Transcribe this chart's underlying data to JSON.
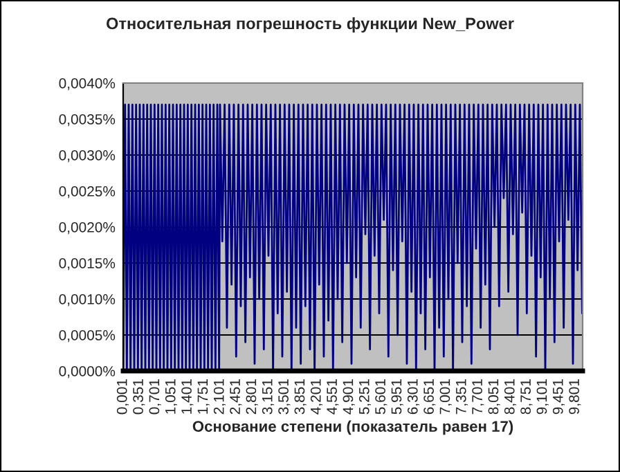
{
  "chart_data": {
    "type": "line",
    "title": "Относительная погрешность функции New_Power",
    "xlabel": "Основание степени (показатель равен 17)",
    "xlim": [
      0.001,
      9.96
    ],
    "ylim": [
      0,
      0.004
    ],
    "grid": "y",
    "legend": false,
    "marker": "none",
    "line_style": "solid",
    "xticks": [
      {
        "value": 0.001,
        "label": "0,001"
      },
      {
        "value": 0.351,
        "label": "0,351"
      },
      {
        "value": 0.701,
        "label": "0,701"
      },
      {
        "value": 1.051,
        "label": "1,051"
      },
      {
        "value": 1.401,
        "label": "1,401"
      },
      {
        "value": 1.751,
        "label": "1,751"
      },
      {
        "value": 2.101,
        "label": "2,101"
      },
      {
        "value": 2.451,
        "label": "2,451"
      },
      {
        "value": 2.801,
        "label": "2,801"
      },
      {
        "value": 3.151,
        "label": "3,151"
      },
      {
        "value": 3.501,
        "label": "3,501"
      },
      {
        "value": 3.851,
        "label": "3,851"
      },
      {
        "value": 4.201,
        "label": "4,201"
      },
      {
        "value": 4.551,
        "label": "4,551"
      },
      {
        "value": 4.901,
        "label": "4,901"
      },
      {
        "value": 5.251,
        "label": "5,251"
      },
      {
        "value": 5.601,
        "label": "5,601"
      },
      {
        "value": 5.951,
        "label": "5,951"
      },
      {
        "value": 6.301,
        "label": "6,301"
      },
      {
        "value": 6.651,
        "label": "6,651"
      },
      {
        "value": 7.001,
        "label": "7,001"
      },
      {
        "value": 7.351,
        "label": "7,351"
      },
      {
        "value": 7.701,
        "label": "7,701"
      },
      {
        "value": 8.051,
        "label": "8,051"
      },
      {
        "value": 8.401,
        "label": "8,401"
      },
      {
        "value": 8.751,
        "label": "8,751"
      },
      {
        "value": 9.101,
        "label": "9,101"
      },
      {
        "value": 9.451,
        "label": "9,451"
      },
      {
        "value": 9.801,
        "label": "9,801"
      }
    ],
    "yticks": [
      {
        "value": 0,
        "label": "0,0000%"
      },
      {
        "value": 0.0005,
        "label": "0,0005%"
      },
      {
        "value": 0.001,
        "label": "0,0010%"
      },
      {
        "value": 0.0015,
        "label": "0,0015%"
      },
      {
        "value": 0.002,
        "label": "0,0020%"
      },
      {
        "value": 0.0025,
        "label": "0,0025%"
      },
      {
        "value": 0.003,
        "label": "0,0030%"
      },
      {
        "value": 0.0035,
        "label": "0,0035%"
      },
      {
        "value": 0.004,
        "label": "0,0040%"
      }
    ],
    "series": [
      {
        "color": "#000080",
        "x": [
          0.001,
          0.041,
          0.081,
          0.121,
          0.161,
          0.201,
          0.241,
          0.281,
          0.321,
          0.361,
          0.401,
          0.441,
          0.481,
          0.521,
          0.561,
          0.601,
          0.641,
          0.681,
          0.721,
          0.761,
          0.801,
          0.841,
          0.881,
          0.921,
          0.961,
          1.001,
          1.041,
          1.081,
          1.121,
          1.161,
          1.201,
          1.241,
          1.281,
          1.321,
          1.361,
          1.401,
          1.441,
          1.481,
          1.521,
          1.561,
          1.601,
          1.641,
          1.681,
          1.721,
          1.761,
          1.801,
          1.841,
          1.881,
          1.921,
          1.961,
          2.001,
          2.041,
          2.081,
          2.1,
          2.15,
          2.2,
          2.25,
          2.3,
          2.35,
          2.4,
          2.45,
          2.5,
          2.55,
          2.6,
          2.65,
          2.7,
          2.75,
          2.8,
          2.85,
          2.9,
          2.95,
          3.0,
          3.05,
          3.1,
          3.15,
          3.2,
          3.25,
          3.3,
          3.35,
          3.4,
          3.45,
          3.5,
          3.55,
          3.6,
          3.65,
          3.7,
          3.75,
          3.8,
          3.85,
          3.9,
          3.95,
          4.0,
          4.05,
          4.1,
          4.15,
          4.2,
          4.25,
          4.3,
          4.35,
          4.4,
          4.45,
          4.5,
          4.55,
          4.6,
          4.65,
          4.7,
          4.75,
          4.8,
          4.85,
          4.9,
          4.95,
          5.0,
          5.05,
          5.1,
          5.15,
          5.2,
          5.25,
          5.3,
          5.35,
          5.4,
          5.45,
          5.5,
          5.55,
          5.6,
          5.65,
          5.7,
          5.75,
          5.8,
          5.85,
          5.9,
          5.95,
          6.0,
          6.05,
          6.1,
          6.15,
          6.2,
          6.25,
          6.3,
          6.35,
          6.4,
          6.45,
          6.5,
          6.55,
          6.6,
          6.65,
          6.7,
          6.75,
          6.8,
          6.85,
          6.9,
          6.95,
          7.0,
          7.05,
          7.1,
          7.15,
          7.2,
          7.25,
          7.3,
          7.35,
          7.4,
          7.45,
          7.5,
          7.55,
          7.6,
          7.65,
          7.7,
          7.75,
          7.8,
          7.85,
          7.9,
          7.95,
          8.0,
          8.05,
          8.1,
          8.15,
          8.2,
          8.25,
          8.3,
          8.35,
          8.4,
          8.45,
          8.5,
          8.55,
          8.6,
          8.65,
          8.7,
          8.75,
          8.8,
          8.85,
          8.9,
          8.95,
          9.0,
          9.05,
          9.1,
          9.15,
          9.2,
          9.25,
          9.3,
          9.35,
          9.4,
          9.45,
          9.5,
          9.55,
          9.6,
          9.65,
          9.7,
          9.75,
          9.8,
          9.85,
          9.9,
          9.95
        ],
        "values": [
          0,
          0.0037,
          0,
          0.0037,
          0,
          0.0037,
          0,
          0.0037,
          0,
          0.0037,
          0,
          0.0037,
          0,
          0.0037,
          0,
          0.0037,
          0,
          0.0037,
          0,
          0.0037,
          0,
          0.0037,
          0,
          0.0037,
          0,
          0.0037,
          0,
          0.0037,
          0,
          0.0037,
          0,
          0.0037,
          0,
          0.0037,
          0,
          0.0037,
          0,
          0.0037,
          0,
          0.0037,
          0,
          0.0037,
          0,
          0.0037,
          0,
          0.0037,
          0,
          0.0037,
          0,
          0.0037,
          0,
          0.0037,
          0,
          0.0037,
          0.0018,
          0.0037,
          0.0006,
          0.0037,
          0.0012,
          0.0037,
          0.0002,
          0.0037,
          0.0009,
          0.0037,
          0.0004,
          0.0037,
          0.0013,
          0.0037,
          0.0001,
          0.0037,
          0.001,
          0.0037,
          0.0003,
          0.0037,
          0.0016,
          0.0037,
          0,
          0.0037,
          0.0008,
          0.0037,
          0.0002,
          0.0037,
          0.0011,
          0.0037,
          0,
          0.0037,
          0.0006,
          0.0037,
          0.0001,
          0.0037,
          0.0009,
          0.0037,
          0.0003,
          0.0037,
          0,
          0.0037,
          0.0012,
          0.0037,
          0.0002,
          0.0037,
          0.0007,
          0.0037,
          0,
          0.0037,
          0.001,
          0.0037,
          0.0004,
          0.0037,
          0.0015,
          0.0037,
          0.0001,
          0.0037,
          0.0013,
          0.0037,
          0.0006,
          0.0037,
          0.0019,
          0.0037,
          0.0003,
          0.0037,
          0.0016,
          0.0037,
          0.0008,
          0.0037,
          0.0021,
          0.0037,
          0.0002,
          0.0037,
          0.0014,
          0.0037,
          0.0005,
          0.0037,
          0.0018,
          0.0037,
          0.0001,
          0.0037,
          0.0011,
          0.0037,
          0,
          0.0037,
          0.0008,
          0.0037,
          0.0003,
          0.0037,
          0.0013,
          0.0037,
          0,
          0.0037,
          0.0006,
          0.0037,
          0.0002,
          0.0037,
          0.001,
          0.0037,
          0,
          0.0037,
          0.0015,
          0.0037,
          0.0004,
          0.0037,
          0.0009,
          0.0037,
          0.0001,
          0.0037,
          0.0017,
          0.0037,
          0.0006,
          0.0037,
          0.0012,
          0.0037,
          0.0003,
          0.0037,
          0.002,
          0.0037,
          0.0009,
          0.0037,
          0.0024,
          0.0037,
          0.0011,
          0.0037,
          0.0019,
          0.0037,
          0.0005,
          0.0037,
          0.0022,
          0.0037,
          0.0008,
          0.0037,
          0.0016,
          0.0037,
          0.0002,
          0.0037,
          0.0013,
          0.0037,
          0,
          0.0037,
          0.001,
          0.0037,
          0.0004,
          0.0037,
          0.0018,
          0.0037,
          0.0006,
          0.0037,
          0.0021,
          0.0037,
          0.0001,
          0.0037,
          0.0014,
          0.0037,
          0.0008
        ]
      }
    ]
  }
}
